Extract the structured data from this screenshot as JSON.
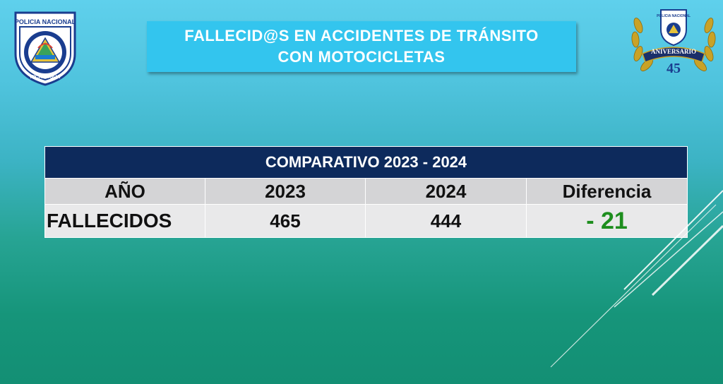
{
  "title": {
    "line1": "FALLECID@S EN ACCIDENTES DE TRÁNSITO",
    "line2": "CON MOTOCICLETAS"
  },
  "logo_left": {
    "top_text": "POLICIA NACIONAL",
    "bottom_text": "NICARAGUA"
  },
  "logo_right": {
    "top_text": "POLICIA NACIONAL",
    "ribbon_text": "ANIVERSARIO",
    "number": "45"
  },
  "table": {
    "header": "COMPARATIVO 2023 - 2024",
    "columns": [
      "AÑO",
      "2023",
      "2024",
      "Diferencia"
    ],
    "row": {
      "label": "FALLECIDOS",
      "v2023": "465",
      "v2024": "444",
      "diff": "- 21"
    }
  },
  "colors": {
    "header_bg": "#0d2a5c",
    "title_bg": "#33c5ee",
    "diff_color": "#1e8e1e"
  }
}
